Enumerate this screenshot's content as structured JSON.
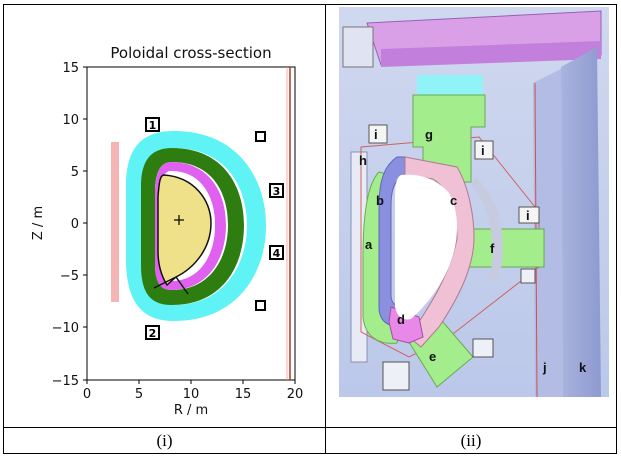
{
  "panel_i": {
    "title": "Poloidal cross-section",
    "xlabel": "R / m",
    "ylabel": "Z / m",
    "xticks": [
      "0",
      "5",
      "10",
      "15",
      "20"
    ],
    "yticks": [
      "15",
      "10",
      "5",
      "0",
      "−5",
      "−10",
      "−15"
    ],
    "xlim": [
      0,
      20
    ],
    "ylim": [
      -15,
      15
    ],
    "markers": [
      "1",
      "2",
      "3",
      "4"
    ],
    "colors": {
      "first_wall": "#5ff3f5",
      "blanket": "#2e7d11",
      "shield": "#e060f0",
      "plasma": "#efe08a",
      "central_coil": "#f5b5b5",
      "outer_wall": "#c03020"
    }
  },
  "panel_ii": {
    "labels": [
      "a",
      "b",
      "c",
      "d",
      "e",
      "f",
      "g",
      "h",
      "i",
      "i",
      "i",
      "j",
      "k"
    ]
  },
  "captions": [
    "(i)",
    "(ii)"
  ]
}
